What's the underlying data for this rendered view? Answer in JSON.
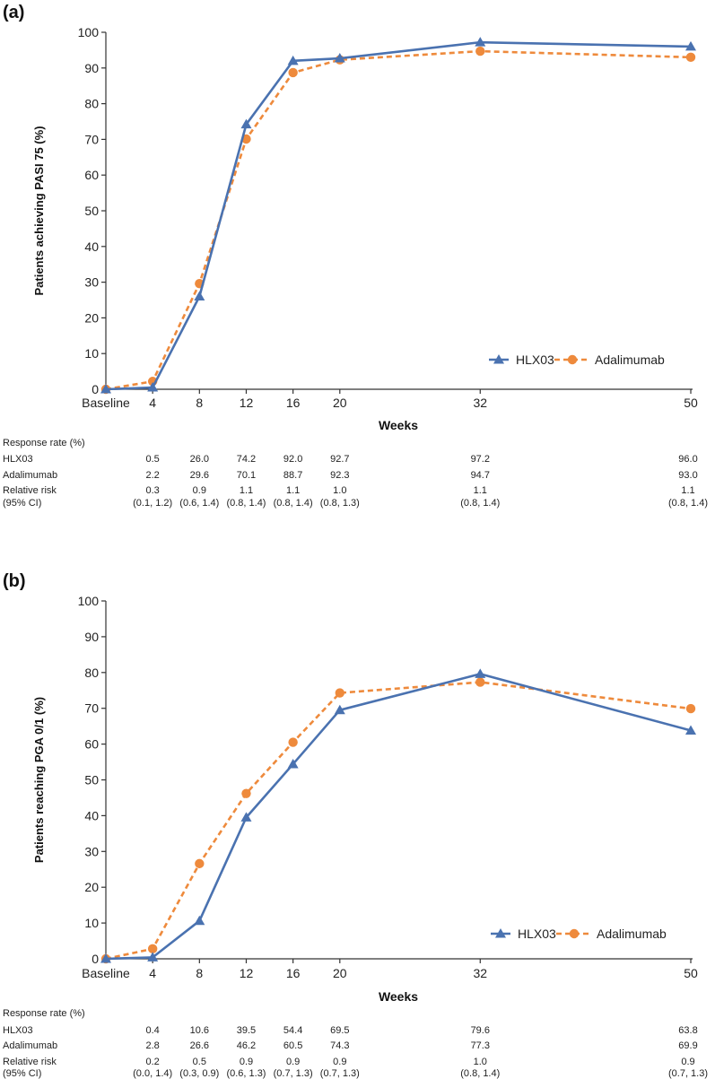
{
  "colors": {
    "hlx03": "#4a72b0",
    "adalimumab": "#ee8a3c",
    "axis": "#333333",
    "text": "#1a1a1a"
  },
  "chart_data": [
    {
      "panel_label": "(a)",
      "type": "line",
      "categories": [
        "Baseline",
        "4",
        "8",
        "12",
        "16",
        "20",
        "32",
        "50"
      ],
      "x": [
        0,
        4,
        8,
        12,
        16,
        20,
        32,
        50
      ],
      "series": [
        {
          "name": "HLX03",
          "marker": "triangle",
          "style": "solid",
          "values": [
            0,
            0.5,
            26.0,
            74.2,
            92.0,
            92.7,
            97.2,
            96.0
          ]
        },
        {
          "name": "Adalimumab",
          "marker": "circle",
          "style": "dashed",
          "values": [
            0,
            2.2,
            29.6,
            70.1,
            88.7,
            92.3,
            94.7,
            93.0
          ]
        }
      ],
      "xlabel": "Weeks",
      "ylabel": "Patients achieving PASI 75 (%)",
      "ylim": [
        0,
        100
      ],
      "yticks": [
        0,
        10,
        20,
        30,
        40,
        50,
        60,
        70,
        80,
        90,
        100
      ],
      "legend_position": "bottom-right",
      "table": {
        "header": "Response rate (%)",
        "rows": [
          {
            "label": "HLX03",
            "values": [
              "0.5",
              "26.0",
              "74.2",
              "92.0",
              "92.7",
              "97.2",
              "96.0"
            ]
          },
          {
            "label": "Adalimumab",
            "values": [
              "2.2",
              "29.6",
              "70.1",
              "88.7",
              "92.3",
              "94.7",
              "93.0"
            ]
          },
          {
            "label": "Relative risk",
            "values": [
              "0.3",
              "0.9",
              "1.1",
              "1.1",
              "1.0",
              "1.1",
              "1.1"
            ]
          },
          {
            "label": "(95% CI)",
            "values": [
              "(0.1, 1.2)",
              "(0.6, 1.4)",
              "(0.8, 1.4)",
              "(0.8, 1.4)",
              "(0.8, 1.3)",
              "(0.8, 1.4)",
              "(0.8, 1.4)"
            ]
          }
        ]
      }
    },
    {
      "panel_label": "(b)",
      "type": "line",
      "categories": [
        "Baseline",
        "4",
        "8",
        "12",
        "16",
        "20",
        "32",
        "50"
      ],
      "x": [
        0,
        4,
        8,
        12,
        16,
        20,
        32,
        50
      ],
      "series": [
        {
          "name": "HLX03",
          "marker": "triangle",
          "style": "solid",
          "values": [
            0,
            0.4,
            10.6,
            39.5,
            54.4,
            69.5,
            79.6,
            63.8
          ]
        },
        {
          "name": "Adalimumab",
          "marker": "circle",
          "style": "dashed",
          "values": [
            0,
            2.8,
            26.6,
            46.2,
            60.5,
            74.3,
            77.3,
            69.9
          ]
        }
      ],
      "xlabel": "Weeks",
      "ylabel": "Patients reaching PGA 0/1 (%)",
      "ylim": [
        0,
        100
      ],
      "yticks": [
        0,
        10,
        20,
        30,
        40,
        50,
        60,
        70,
        80,
        90,
        100
      ],
      "legend_position": "bottom-right",
      "table": {
        "header": "Response rate (%)",
        "rows": [
          {
            "label": "HLX03",
            "values": [
              "0.4",
              "10.6",
              "39.5",
              "54.4",
              "69.5",
              "79.6",
              "63.8"
            ]
          },
          {
            "label": "Adalimumab",
            "values": [
              "2.8",
              "26.6",
              "46.2",
              "60.5",
              "74.3",
              "77.3",
              "69.9"
            ]
          },
          {
            "label": "Relative risk",
            "values": [
              "0.2",
              "0.5",
              "0.9",
              "0.9",
              "0.9",
              "1.0",
              "0.9"
            ]
          },
          {
            "label": "(95% CI)",
            "values": [
              "(0.0, 1.4)",
              "(0.3, 0.9)",
              "(0.6, 1.3)",
              "(0.7, 1.3)",
              "(0.7, 1.3)",
              "(0.8, 1.4)",
              "(0.7, 1.3)"
            ]
          }
        ]
      }
    }
  ]
}
